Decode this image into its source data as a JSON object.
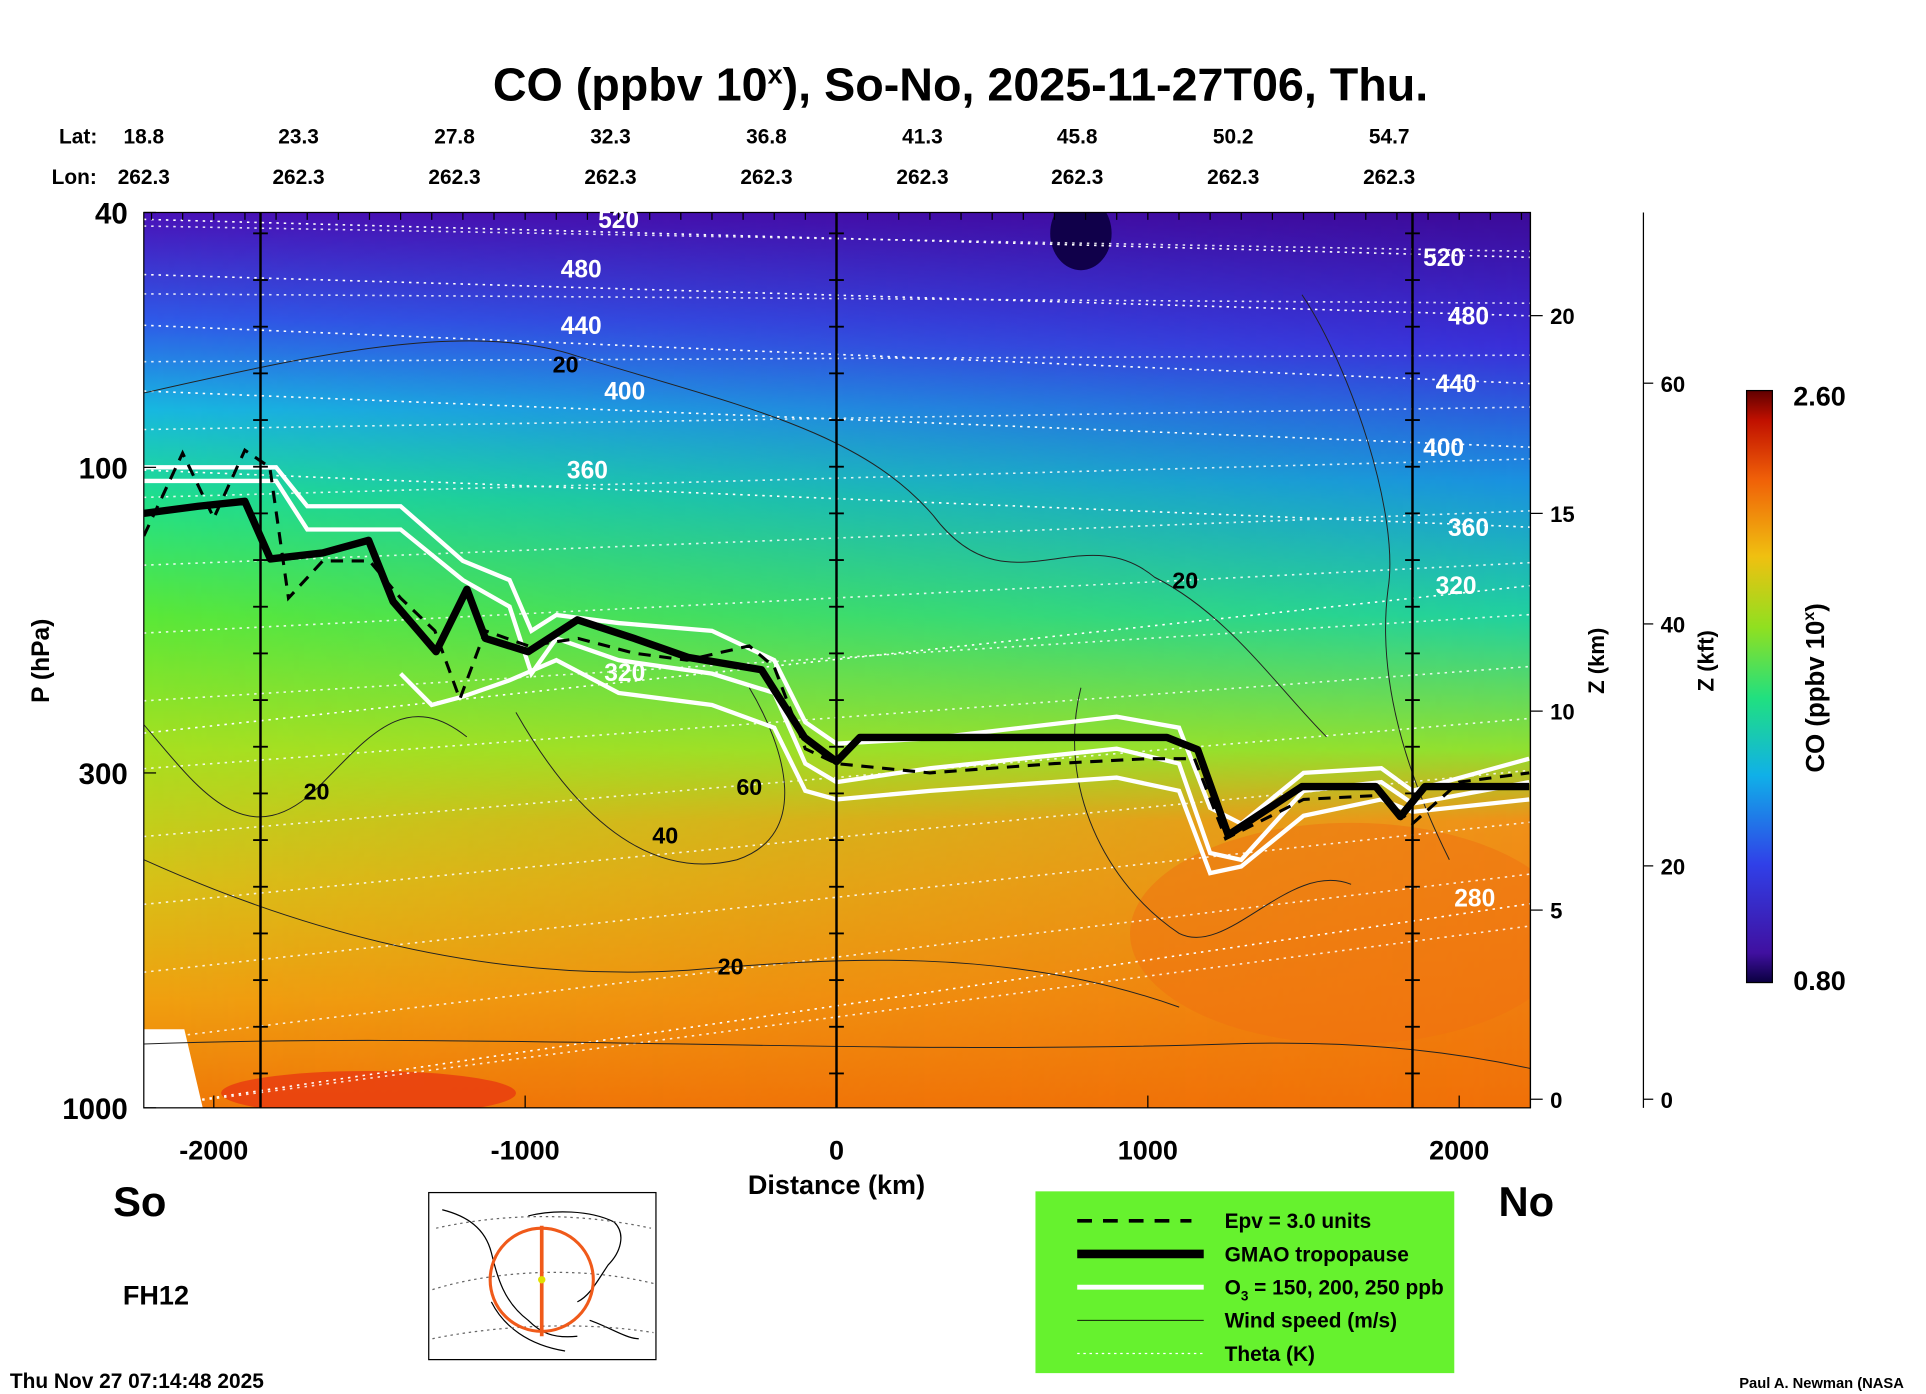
{
  "chart_data": {
    "type": "heatmap",
    "title": "CO (ppbv 10",
    "title_sup": "x",
    "title_rest": "), So-No, 2025-11-27T06, Thu.",
    "xlabel": "Distance (km)",
    "ylabel": "P (hPa)",
    "ylabel_right1": "Z (km)",
    "ylabel_right2": "Z (kft)",
    "xlim": [
      -2225,
      2225
    ],
    "ylim": [
      1000,
      40
    ],
    "x_ticks": [
      -2000,
      -1000,
      0,
      1000,
      2000
    ],
    "x_tick_labels": [
      "-2000",
      "-1000",
      "0",
      "1000",
      "2000"
    ],
    "y_ticks": [
      40,
      100,
      300,
      1000
    ],
    "y_tick_labels": [
      "40",
      "100",
      "300",
      "1000"
    ],
    "z_km_ticks": [
      "20",
      "15",
      "10",
      "5",
      "0"
    ],
    "z_kft_ticks": [
      "60",
      "40",
      "20",
      "0"
    ],
    "lat_label": "Lat:",
    "lon_label": "Lon:",
    "lat": [
      "18.8",
      "23.3",
      "27.8",
      "32.3",
      "36.8",
      "41.3",
      "45.8",
      "50.2",
      "54.7"
    ],
    "lon": [
      "262.3",
      "262.3",
      "262.3",
      "262.3",
      "262.3",
      "262.3",
      "262.3",
      "262.3",
      "262.3"
    ],
    "colorbar": {
      "label": "CO (ppbv 10",
      "label_sup": "x",
      "label_end": ")",
      "max": "2.60",
      "min": "0.80"
    },
    "vertical_markers_km": [
      -1850,
      0,
      1850
    ],
    "tropopause": [
      [
        -2225,
        118
      ],
      [
        -2050,
        115
      ],
      [
        -1900,
        113
      ],
      [
        -1818,
        139
      ],
      [
        -1650,
        136
      ],
      [
        -1503,
        130
      ],
      [
        -1424,
        162
      ],
      [
        -1286,
        194
      ],
      [
        -1187,
        155
      ],
      [
        -1128,
        185
      ],
      [
        -990,
        194
      ],
      [
        -832,
        173
      ],
      [
        -650,
        185
      ],
      [
        -477,
        198
      ],
      [
        -241,
        207
      ],
      [
        -103,
        264
      ],
      [
        0,
        288
      ],
      [
        75,
        264
      ],
      [
        1061,
        264
      ],
      [
        1160,
        276
      ],
      [
        1258,
        375
      ],
      [
        1495,
        315
      ],
      [
        1732,
        315
      ],
      [
        1811,
        351
      ],
      [
        1890,
        315
      ],
      [
        2225,
        315
      ]
    ],
    "epv": [
      [
        -2225,
        128
      ],
      [
        -2100,
        95
      ],
      [
        -2000,
        120
      ],
      [
        -1900,
        94
      ],
      [
        -1820,
        100
      ],
      [
        -1760,
        160
      ],
      [
        -1650,
        140
      ],
      [
        -1500,
        140
      ],
      [
        -1400,
        160
      ],
      [
        -1290,
        180
      ],
      [
        -1210,
        230
      ],
      [
        -1128,
        180
      ],
      [
        -990,
        190
      ],
      [
        -830,
        185
      ],
      [
        -650,
        195
      ],
      [
        -480,
        200
      ],
      [
        -280,
        190
      ],
      [
        -200,
        205
      ],
      [
        -100,
        275
      ],
      [
        0,
        290
      ],
      [
        300,
        300
      ],
      [
        700,
        290
      ],
      [
        1000,
        285
      ],
      [
        1150,
        285
      ],
      [
        1250,
        380
      ],
      [
        1500,
        330
      ],
      [
        1750,
        325
      ],
      [
        1850,
        360
      ],
      [
        2000,
        310
      ],
      [
        2225,
        300
      ]
    ],
    "ozone": [
      {
        "level": "150",
        "points": [
          [
            -2225,
            100
          ],
          [
            -1800,
            100
          ],
          [
            -1700,
            115
          ],
          [
            -1400,
            115
          ],
          [
            -1200,
            140
          ],
          [
            -1050,
            150
          ],
          [
            -980,
            180
          ],
          [
            -900,
            170
          ],
          [
            -700,
            175
          ],
          [
            -400,
            180
          ],
          [
            -200,
            200
          ],
          [
            -100,
            250
          ],
          [
            0,
            270
          ],
          [
            300,
            265
          ],
          [
            900,
            245
          ],
          [
            1100,
            255
          ],
          [
            1200,
            340
          ],
          [
            1300,
            360
          ],
          [
            1500,
            300
          ],
          [
            1750,
            295
          ],
          [
            1850,
            320
          ],
          [
            2225,
            285
          ]
        ]
      },
      {
        "level": "200",
        "points": [
          [
            -2225,
            105
          ],
          [
            -1800,
            105
          ],
          [
            -1700,
            125
          ],
          [
            -1400,
            125
          ],
          [
            -1200,
            150
          ],
          [
            -1050,
            165
          ],
          [
            -980,
            210
          ],
          [
            -900,
            185
          ],
          [
            -700,
            200
          ],
          [
            -400,
            210
          ],
          [
            -200,
            225
          ],
          [
            -100,
            290
          ],
          [
            0,
            310
          ],
          [
            300,
            295
          ],
          [
            900,
            275
          ],
          [
            1100,
            290
          ],
          [
            1200,
            400
          ],
          [
            1300,
            410
          ],
          [
            1500,
            320
          ],
          [
            1750,
            310
          ],
          [
            1850,
            335
          ],
          [
            2225,
            310
          ]
        ]
      },
      {
        "level": "250",
        "points": [
          [
            -1400,
            210
          ],
          [
            -1300,
            235
          ],
          [
            -1200,
            228
          ],
          [
            -1050,
            215
          ],
          [
            -900,
            200
          ],
          [
            -700,
            225
          ],
          [
            -400,
            235
          ],
          [
            -200,
            255
          ],
          [
            -100,
            320
          ],
          [
            0,
            330
          ],
          [
            300,
            320
          ],
          [
            900,
            305
          ],
          [
            1100,
            320
          ],
          [
            1200,
            430
          ],
          [
            1300,
            420
          ],
          [
            1500,
            350
          ],
          [
            1750,
            330
          ],
          [
            1850,
            345
          ],
          [
            2225,
            330
          ]
        ]
      }
    ],
    "theta": [
      {
        "label": "520",
        "p_left": 41,
        "p_right": 47,
        "label_at": [
          -700,
          41
        ],
        "label_at2": [
          1950,
          47
        ]
      },
      {
        "label": "480",
        "p_left": 50,
        "p_right": 58,
        "label_at": [
          -820,
          49
        ],
        "label_at2": [
          2030,
          58
        ]
      },
      {
        "label": "440",
        "p_left": 60,
        "p_right": 74,
        "label_at": [
          -820,
          60
        ],
        "label_at2": [
          1990,
          74
        ]
      },
      {
        "label": "400",
        "p_left": 76,
        "p_right": 93,
        "label_at": [
          -680,
          76
        ],
        "label_at2": [
          1950,
          93
        ]
      },
      {
        "label": "360",
        "p_left": 101,
        "p_right": 124,
        "label_at": [
          -800,
          101
        ],
        "label_at2": [
          2030,
          124
        ]
      },
      {
        "label": "320",
        "p_left": 260,
        "p_right": 153,
        "label_at": [
          -680,
          209
        ],
        "label_at2": [
          1990,
          153
        ]
      },
      {
        "label": "280",
        "p_left": 1000,
        "p_right": 480,
        "label_at": [
          2050,
          470
        ],
        "label_at2": null
      }
    ],
    "wind_labels": [
      {
        "label": "20",
        "at": [
          -870,
          69
        ]
      },
      {
        "label": "20",
        "at": [
          1120,
          150
        ]
      },
      {
        "label": "20",
        "at": [
          -1670,
          320
        ]
      },
      {
        "label": "60",
        "at": [
          -280,
          315
        ]
      },
      {
        "label": "40",
        "at": [
          -550,
          375
        ]
      },
      {
        "label": "20",
        "at": [
          -340,
          600
        ]
      }
    ]
  },
  "labels": {
    "south": "So",
    "north": "No",
    "forecast_hour": "FH12",
    "timestamp": "Thu Nov 27 07:14:48 2025",
    "credit": "Paul A. Newman (NASA"
  },
  "legend": {
    "items": [
      "Epv = 3.0 units",
      "GMAO tropopause",
      "O",
      "Wind speed (m/s)",
      "Theta (K)"
    ],
    "ozone_sub": "3",
    "ozone_rest": " = 150, 200, 250 ppb",
    "background": "#66f22e"
  }
}
